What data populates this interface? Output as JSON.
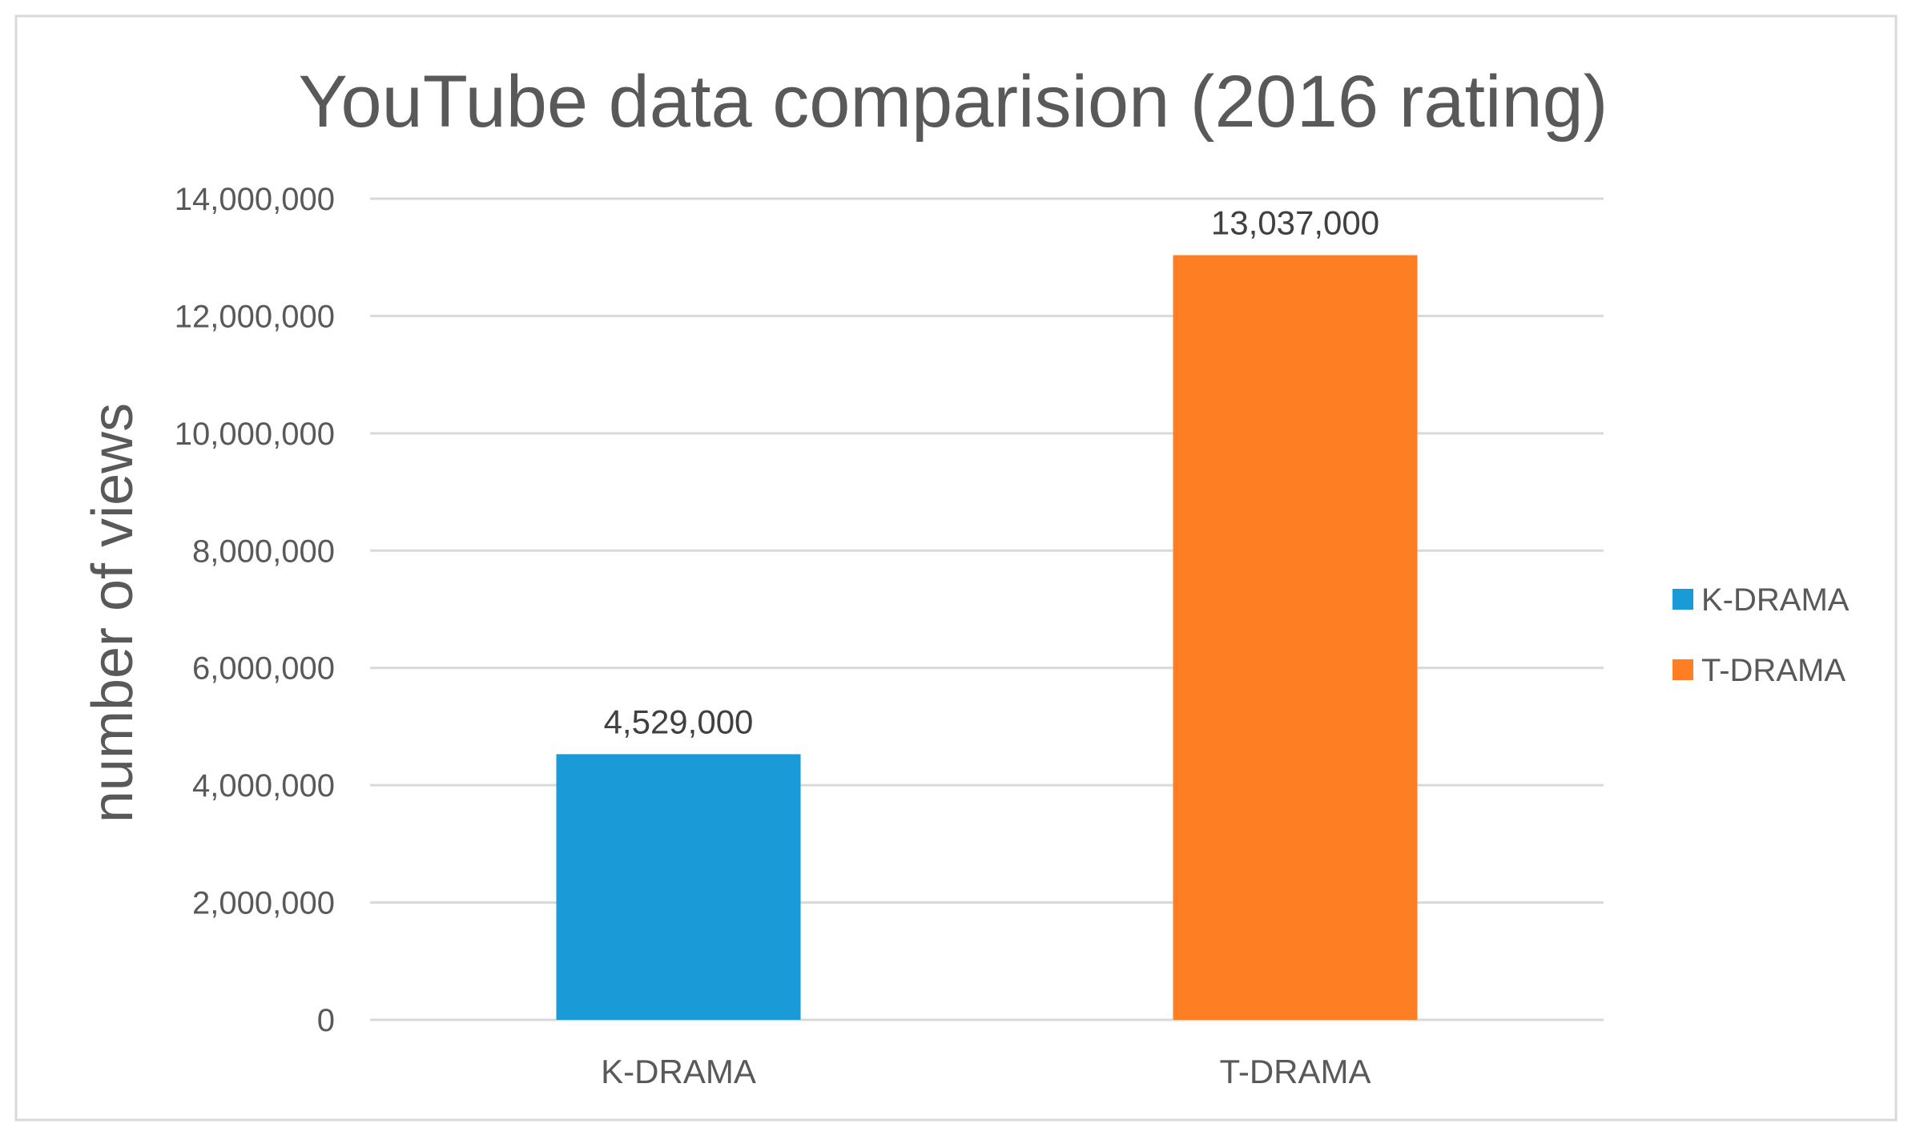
{
  "chart_data": {
    "type": "bar",
    "title": "YouTube data comparision (2016 rating)",
    "ylabel": "number of views",
    "xlabel": "",
    "categories": [
      "K-DRAMA",
      "T-DRAMA"
    ],
    "series": [
      {
        "name": "K-DRAMA",
        "color": "#1a9ad7",
        "values": [
          4529000,
          null
        ]
      },
      {
        "name": "T-DRAMA",
        "color": "#fd7e23",
        "values": [
          null,
          13037000
        ]
      }
    ],
    "data_labels": [
      "4,529,000",
      "13,037,000"
    ],
    "ylim": [
      0,
      14000000
    ],
    "yticks": [
      0,
      2000000,
      4000000,
      6000000,
      8000000,
      10000000,
      12000000,
      14000000
    ],
    "ytick_labels": [
      "0",
      "2,000,000",
      "4,000,000",
      "6,000,000",
      "8,000,000",
      "10,000,000",
      "12,000,000",
      "14,000,000"
    ],
    "grid": true,
    "legend_position": "right",
    "gridline_color": "#d9d9d9",
    "border_color": "#d9d9d9"
  }
}
